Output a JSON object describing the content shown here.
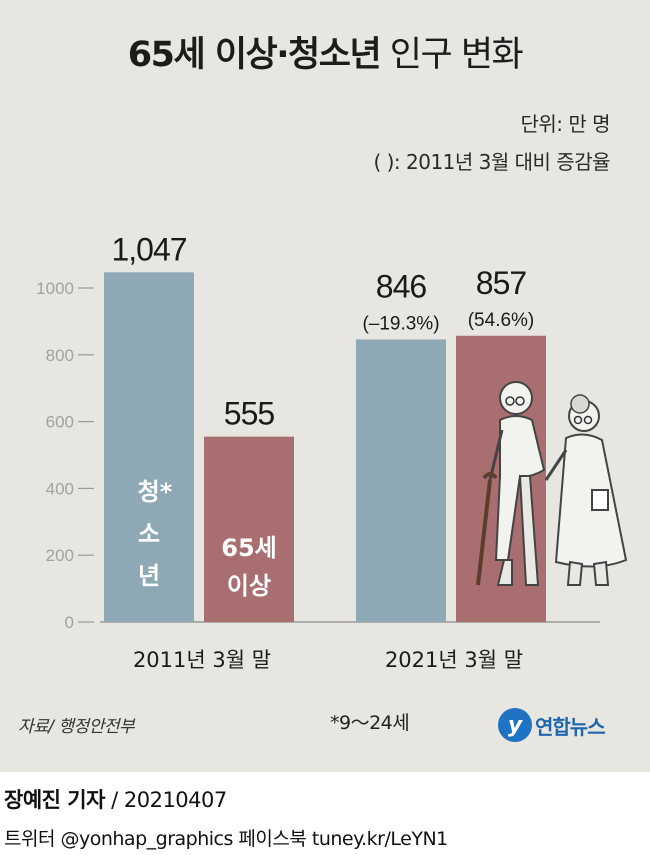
{
  "title": {
    "bold": "65세 이상·청소년",
    "light": "인구 변화"
  },
  "unit_note": "단위: 만 명",
  "change_note": "( ): 2011년 3월 대비 증감율",
  "chart_data": {
    "type": "bar",
    "categories": [
      "2011년 3월 말",
      "2021년 3월 말"
    ],
    "series": [
      {
        "name": "청소년*",
        "values": [
          1047,
          846
        ],
        "color": "#8ea9b5"
      },
      {
        "name": "65세 이상",
        "values": [
          555,
          857
        ],
        "color": "#a86e70"
      }
    ],
    "value_labels": [
      [
        "1,047",
        "555"
      ],
      [
        "846",
        "857"
      ]
    ],
    "change_labels": [
      [
        "",
        ""
      ],
      [
        "(–19.3%)",
        "(54.6%)"
      ]
    ],
    "inside_labels": {
      "youth": [
        "청*",
        "소",
        "년"
      ],
      "elderly": [
        "65세",
        "이상"
      ]
    },
    "yticks": [
      0,
      200,
      400,
      600,
      800,
      1000
    ],
    "ylim": [
      0,
      1000
    ],
    "grid": false,
    "axis_color": "#9a9a9a"
  },
  "source": "자료/ 행정안전부",
  "footnote": "*9～24세",
  "logo": {
    "mark": "y",
    "text": "연합뉴스"
  },
  "reporter": {
    "name": "장예진 기자",
    "date": "/ 20210407"
  },
  "social": "트위터 @yonhap_graphics  페이스북 tuney.kr/LeYN1"
}
